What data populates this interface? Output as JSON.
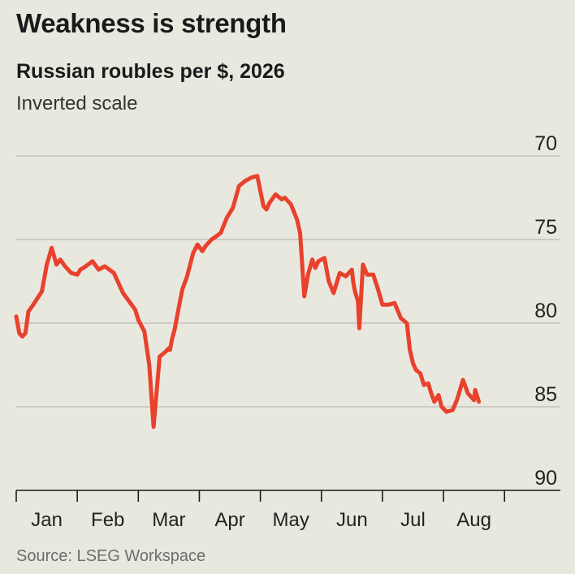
{
  "chart_data": {
    "type": "line",
    "title": "Weakness is strength",
    "subtitle": "Russian roubles per $, 2026",
    "note": "Inverted scale",
    "source": "Source: LSEG Workspace",
    "y_inverted": true,
    "ylim": [
      70,
      90
    ],
    "yticks": [
      "70",
      "75",
      "80",
      "85",
      "90"
    ],
    "xlim": [
      0,
      8.25
    ],
    "x_tick_labels": [
      "Jan",
      "Feb",
      "Mar",
      "Apr",
      "May",
      "Jun",
      "Jul",
      "Aug"
    ],
    "grid": true,
    "line_color": "#e8412c",
    "series": [
      {
        "x": [
          0.0,
          0.05,
          0.1,
          0.15,
          0.2,
          0.28,
          0.33,
          0.42,
          0.5,
          0.58,
          0.66,
          0.72,
          0.8,
          0.9,
          1.0,
          1.05,
          1.1,
          1.25,
          1.35,
          1.45,
          1.6,
          1.75,
          1.85,
          1.95,
          2.0,
          2.1,
          2.18,
          2.25,
          2.35,
          2.45,
          2.5,
          2.52,
          2.55,
          2.6,
          2.65,
          2.72,
          2.8,
          2.9,
          2.97,
          3.05,
          3.1,
          3.2,
          3.28,
          3.35,
          3.45,
          3.55,
          3.65,
          3.75,
          3.85,
          3.95,
          4.05,
          4.1,
          4.15,
          4.25,
          4.35,
          4.4,
          4.5,
          4.6,
          4.65,
          4.72,
          4.78,
          4.85,
          4.9,
          4.95,
          5.05,
          5.12,
          5.2,
          5.3,
          5.4,
          5.5,
          5.52,
          5.55,
          5.6,
          5.62,
          5.68,
          5.75,
          5.85,
          5.93,
          6.0,
          6.1,
          6.2,
          6.3,
          6.4,
          6.45,
          6.5,
          6.55,
          6.62,
          6.68,
          6.75,
          6.8,
          6.85,
          6.92,
          6.97,
          7.05,
          7.15,
          7.22,
          7.32,
          7.4,
          7.5,
          7.52,
          7.58
        ],
        "values": [
          79.6,
          80.6,
          80.8,
          80.6,
          79.3,
          78.9,
          78.6,
          78.1,
          76.5,
          75.5,
          76.5,
          76.2,
          76.6,
          77.0,
          77.1,
          76.8,
          76.7,
          76.3,
          76.8,
          76.6,
          77.0,
          78.2,
          78.7,
          79.2,
          79.8,
          80.5,
          82.5,
          86.2,
          82.0,
          81.7,
          81.5,
          81.6,
          81.0,
          80.3,
          79.3,
          78.0,
          77.2,
          75.8,
          75.3,
          75.7,
          75.4,
          75.0,
          74.8,
          74.6,
          73.7,
          73.1,
          71.8,
          71.5,
          71.3,
          71.2,
          73.0,
          73.2,
          72.8,
          72.3,
          72.6,
          72.5,
          72.9,
          73.8,
          74.6,
          78.4,
          77.1,
          76.2,
          76.7,
          76.3,
          76.1,
          77.5,
          78.2,
          77.0,
          77.2,
          76.8,
          77.5,
          78.1,
          78.7,
          80.3,
          76.5,
          77.1,
          77.1,
          78.0,
          78.9,
          78.9,
          78.8,
          79.7,
          80.0,
          81.6,
          82.4,
          82.8,
          83.0,
          83.7,
          83.6,
          84.2,
          84.7,
          84.3,
          85.0,
          85.3,
          85.2,
          84.6,
          83.4,
          84.2,
          84.6,
          84.0,
          84.7
        ]
      }
    ]
  }
}
